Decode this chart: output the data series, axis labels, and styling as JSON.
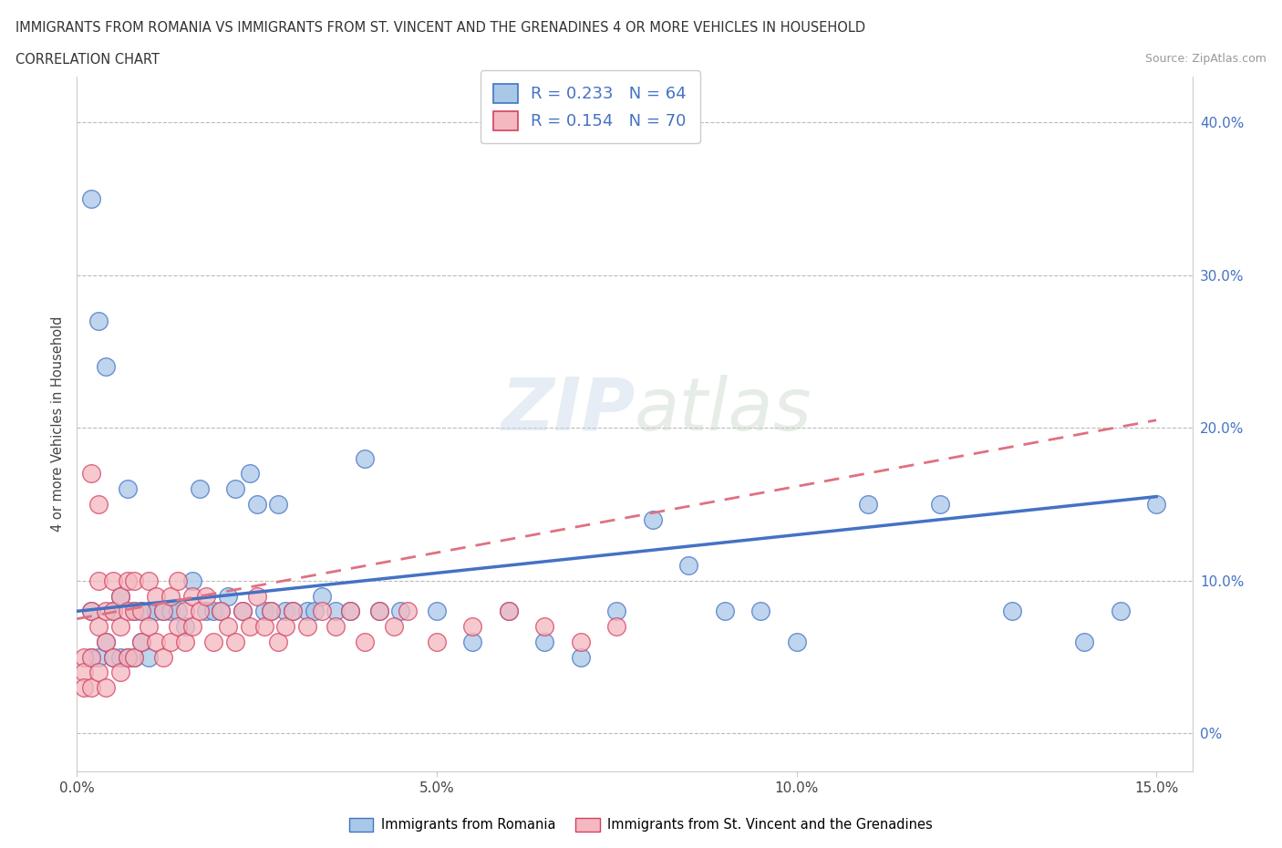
{
  "title_line1": "IMMIGRANTS FROM ROMANIA VS IMMIGRANTS FROM ST. VINCENT AND THE GRENADINES 4 OR MORE VEHICLES IN HOUSEHOLD",
  "title_line2": "CORRELATION CHART",
  "source_text": "Source: ZipAtlas.com",
  "ylabel": "4 or more Vehicles in Household",
  "ytick_vals": [
    0.0,
    0.1,
    0.2,
    0.3,
    0.4
  ],
  "ytick_labels": [
    "0%",
    "10.0%",
    "20.0%",
    "30.0%",
    "40.0%"
  ],
  "xtick_vals": [
    0.0,
    0.05,
    0.1,
    0.15
  ],
  "xtick_labels": [
    "0.0%",
    "5.0%",
    "10.0%",
    "15.0%"
  ],
  "xlim": [
    0.0,
    0.155
  ],
  "ylim": [
    -0.025,
    0.43
  ],
  "legend_r1": "R = 0.233",
  "legend_n1": "N = 64",
  "legend_r2": "R = 0.154",
  "legend_n2": "N = 70",
  "color_romania": "#a8c8e8",
  "color_romania_edge": "#4472c4",
  "color_stvincent": "#f4b8c0",
  "color_stvincent_edge": "#d44060",
  "color_line_romania": "#4472c4",
  "color_line_stvincent": "#e07080",
  "watermark": "ZIPatlas",
  "romania_x": [
    0.002,
    0.002,
    0.002,
    0.003,
    0.003,
    0.004,
    0.004,
    0.005,
    0.005,
    0.006,
    0.006,
    0.007,
    0.007,
    0.008,
    0.008,
    0.009,
    0.009,
    0.01,
    0.01,
    0.011,
    0.012,
    0.013,
    0.014,
    0.015,
    0.016,
    0.017,
    0.018,
    0.019,
    0.02,
    0.021,
    0.022,
    0.023,
    0.024,
    0.025,
    0.026,
    0.027,
    0.028,
    0.029,
    0.03,
    0.032,
    0.033,
    0.034,
    0.036,
    0.038,
    0.04,
    0.042,
    0.045,
    0.05,
    0.055,
    0.06,
    0.065,
    0.07,
    0.075,
    0.08,
    0.085,
    0.09,
    0.095,
    0.1,
    0.11,
    0.12,
    0.13,
    0.14,
    0.145,
    0.15
  ],
  "romania_y": [
    0.35,
    0.08,
    0.05,
    0.27,
    0.05,
    0.24,
    0.06,
    0.08,
    0.05,
    0.09,
    0.05,
    0.16,
    0.05,
    0.08,
    0.05,
    0.08,
    0.06,
    0.08,
    0.05,
    0.08,
    0.08,
    0.08,
    0.08,
    0.07,
    0.1,
    0.16,
    0.08,
    0.08,
    0.08,
    0.09,
    0.16,
    0.08,
    0.17,
    0.15,
    0.08,
    0.08,
    0.15,
    0.08,
    0.08,
    0.08,
    0.08,
    0.09,
    0.08,
    0.08,
    0.18,
    0.08,
    0.08,
    0.08,
    0.06,
    0.08,
    0.06,
    0.05,
    0.08,
    0.14,
    0.11,
    0.08,
    0.08,
    0.06,
    0.15,
    0.15,
    0.08,
    0.06,
    0.08,
    0.15
  ],
  "stvincent_x": [
    0.001,
    0.001,
    0.001,
    0.002,
    0.002,
    0.002,
    0.002,
    0.003,
    0.003,
    0.003,
    0.003,
    0.004,
    0.004,
    0.004,
    0.005,
    0.005,
    0.005,
    0.006,
    0.006,
    0.006,
    0.007,
    0.007,
    0.007,
    0.008,
    0.008,
    0.008,
    0.009,
    0.009,
    0.01,
    0.01,
    0.011,
    0.011,
    0.012,
    0.012,
    0.013,
    0.013,
    0.014,
    0.014,
    0.015,
    0.015,
    0.016,
    0.016,
    0.017,
    0.018,
    0.019,
    0.02,
    0.021,
    0.022,
    0.023,
    0.024,
    0.025,
    0.026,
    0.027,
    0.028,
    0.029,
    0.03,
    0.032,
    0.034,
    0.036,
    0.038,
    0.04,
    0.042,
    0.044,
    0.046,
    0.05,
    0.055,
    0.06,
    0.065,
    0.07,
    0.075
  ],
  "stvincent_y": [
    0.05,
    0.04,
    0.03,
    0.17,
    0.08,
    0.05,
    0.03,
    0.15,
    0.1,
    0.07,
    0.04,
    0.08,
    0.06,
    0.03,
    0.1,
    0.08,
    0.05,
    0.09,
    0.07,
    0.04,
    0.1,
    0.08,
    0.05,
    0.1,
    0.08,
    0.05,
    0.08,
    0.06,
    0.1,
    0.07,
    0.09,
    0.06,
    0.08,
    0.05,
    0.09,
    0.06,
    0.1,
    0.07,
    0.08,
    0.06,
    0.09,
    0.07,
    0.08,
    0.09,
    0.06,
    0.08,
    0.07,
    0.06,
    0.08,
    0.07,
    0.09,
    0.07,
    0.08,
    0.06,
    0.07,
    0.08,
    0.07,
    0.08,
    0.07,
    0.08,
    0.06,
    0.08,
    0.07,
    0.08,
    0.06,
    0.07,
    0.08,
    0.07,
    0.06,
    0.07
  ],
  "romania_regline": [
    0.0,
    0.15,
    0.08,
    0.155
  ],
  "stvincent_regline": [
    0.0,
    0.15,
    0.075,
    0.205
  ]
}
